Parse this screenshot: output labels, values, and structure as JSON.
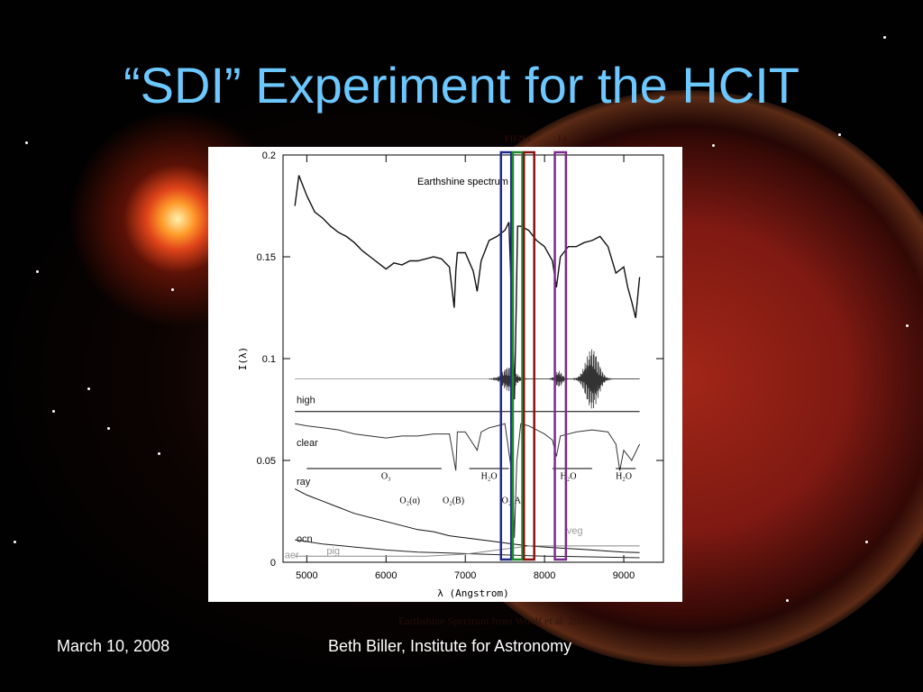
{
  "slide": {
    "title": "“SDI” Experiment for the HCIT",
    "date": "March 10, 2008",
    "author": "Beth Biller, Institute for Astronomy",
    "caption": "Earthshine Spectrum from Woolf et al. 2002"
  },
  "filters": {
    "labels": [
      "F1F2F3",
      "F4"
    ],
    "boxes": [
      {
        "name": "F1",
        "color": "#1f2a8a",
        "range_angstrom": [
          7450,
          7580
        ]
      },
      {
        "name": "F2",
        "color": "#1f8a2a",
        "range_angstrom": [
          7600,
          7720
        ]
      },
      {
        "name": "F3",
        "color": "#8a1212",
        "range_angstrom": [
          7740,
          7870
        ]
      },
      {
        "name": "F4",
        "color": "#7b2b8f",
        "range_angstrom": [
          8130,
          8270
        ]
      }
    ]
  },
  "chart_data": {
    "type": "line",
    "title": "Earthshine spectrum",
    "xlabel": "λ (Angstrom)",
    "ylabel": "I(λ)",
    "xlim": [
      4700,
      9500
    ],
    "ylim": [
      0,
      0.2
    ],
    "xticks": [
      5000,
      6000,
      7000,
      8000,
      9000
    ],
    "yticks": [
      "0",
      "0.05",
      "0.1",
      "0.15",
      "0.2"
    ],
    "ytick_values": [
      0,
      0.05,
      0.1,
      0.15,
      0.2
    ],
    "series": [
      {
        "name": "Earthshine spectrum",
        "x": [
          4850,
          4900,
          5000,
          5100,
          5200,
          5300,
          5400,
          5500,
          5600,
          5700,
          5800,
          5900,
          6000,
          6100,
          6200,
          6300,
          6400,
          6500,
          6600,
          6700,
          6800,
          6860,
          6880,
          6900,
          7000,
          7100,
          7150,
          7200,
          7300,
          7400,
          7500,
          7550,
          7600,
          7620,
          7640,
          7660,
          7700,
          7800,
          7900,
          8000,
          8100,
          8150,
          8200,
          8300,
          8400,
          8500,
          8600,
          8700,
          8800,
          8900,
          9000,
          9050,
          9100,
          9150,
          9200
        ],
        "y": [
          0.175,
          0.19,
          0.18,
          0.172,
          0.169,
          0.165,
          0.162,
          0.16,
          0.157,
          0.153,
          0.15,
          0.147,
          0.144,
          0.147,
          0.146,
          0.148,
          0.148,
          0.149,
          0.15,
          0.149,
          0.145,
          0.125,
          0.143,
          0.152,
          0.152,
          0.143,
          0.133,
          0.148,
          0.158,
          0.16,
          0.163,
          0.167,
          0.11,
          0.08,
          0.12,
          0.165,
          0.165,
          0.163,
          0.158,
          0.155,
          0.148,
          0.135,
          0.15,
          0.155,
          0.155,
          0.157,
          0.158,
          0.16,
          0.155,
          0.142,
          0.145,
          0.135,
          0.128,
          0.12,
          0.14
        ]
      },
      {
        "name": "clear",
        "x": [
          4850,
          5000,
          5200,
          5400,
          5600,
          5800,
          6000,
          6200,
          6400,
          6600,
          6800,
          6880,
          6900,
          7000,
          7100,
          7150,
          7200,
          7300,
          7400,
          7500,
          7600,
          7620,
          7650,
          7700,
          7800,
          7900,
          8000,
          8100,
          8150,
          8200,
          8400,
          8600,
          8800,
          8900,
          8950,
          9000,
          9100,
          9200
        ],
        "y": [
          0.068,
          0.067,
          0.066,
          0.065,
          0.063,
          0.062,
          0.061,
          0.062,
          0.062,
          0.063,
          0.063,
          0.045,
          0.064,
          0.064,
          0.058,
          0.055,
          0.064,
          0.066,
          0.067,
          0.068,
          0.04,
          0.012,
          0.05,
          0.068,
          0.067,
          0.065,
          0.063,
          0.06,
          0.052,
          0.062,
          0.064,
          0.065,
          0.064,
          0.058,
          0.045,
          0.055,
          0.05,
          0.058
        ]
      },
      {
        "name": "ray",
        "x": [
          4850,
          5000,
          5200,
          5400,
          5600,
          5800,
          6000,
          6200,
          6400,
          6600,
          6800,
          7000,
          7200,
          7400,
          7600,
          7800,
          8000,
          8200,
          8400,
          8600,
          8800,
          9000,
          9200
        ],
        "y": [
          0.036,
          0.033,
          0.03,
          0.027,
          0.024,
          0.022,
          0.02,
          0.018,
          0.016,
          0.015,
          0.013,
          0.012,
          0.011,
          0.01,
          0.009,
          0.008,
          0.0075,
          0.007,
          0.0065,
          0.006,
          0.0055,
          0.005,
          0.0048
        ]
      },
      {
        "name": "ocn",
        "x": [
          4850,
          5200,
          5600,
          6000,
          6400,
          6800,
          7200,
          7600,
          8000,
          8400,
          8800,
          9200
        ],
        "y": [
          0.011,
          0.009,
          0.0075,
          0.006,
          0.005,
          0.0045,
          0.004,
          0.0035,
          0.003,
          0.0028,
          0.0025,
          0.0022
        ]
      },
      {
        "name": "veg",
        "x": [
          4850,
          5500,
          6000,
          6500,
          7000,
          7200,
          7400,
          7600,
          7800,
          8000,
          8400,
          8800,
          9200
        ],
        "y": [
          0.003,
          0.003,
          0.003,
          0.003,
          0.004,
          0.005,
          0.006,
          0.007,
          0.008,
          0.008,
          0.008,
          0.008,
          0.008
        ]
      }
    ],
    "labels": {
      "high": "high",
      "clear": "clear",
      "ray": "ray",
      "ocn": "ocn",
      "pig": "pig",
      "aer": "aer",
      "veg": "veg"
    },
    "absorption_bands": [
      "O₃",
      "H₂O",
      "H₂O",
      "H₂O",
      "O₂(α)",
      "O₂(B)",
      "O₂(A)"
    ],
    "absorption_band_x": [
      6000,
      7300,
      8300,
      9000,
      6300,
      6850,
      7600
    ]
  }
}
